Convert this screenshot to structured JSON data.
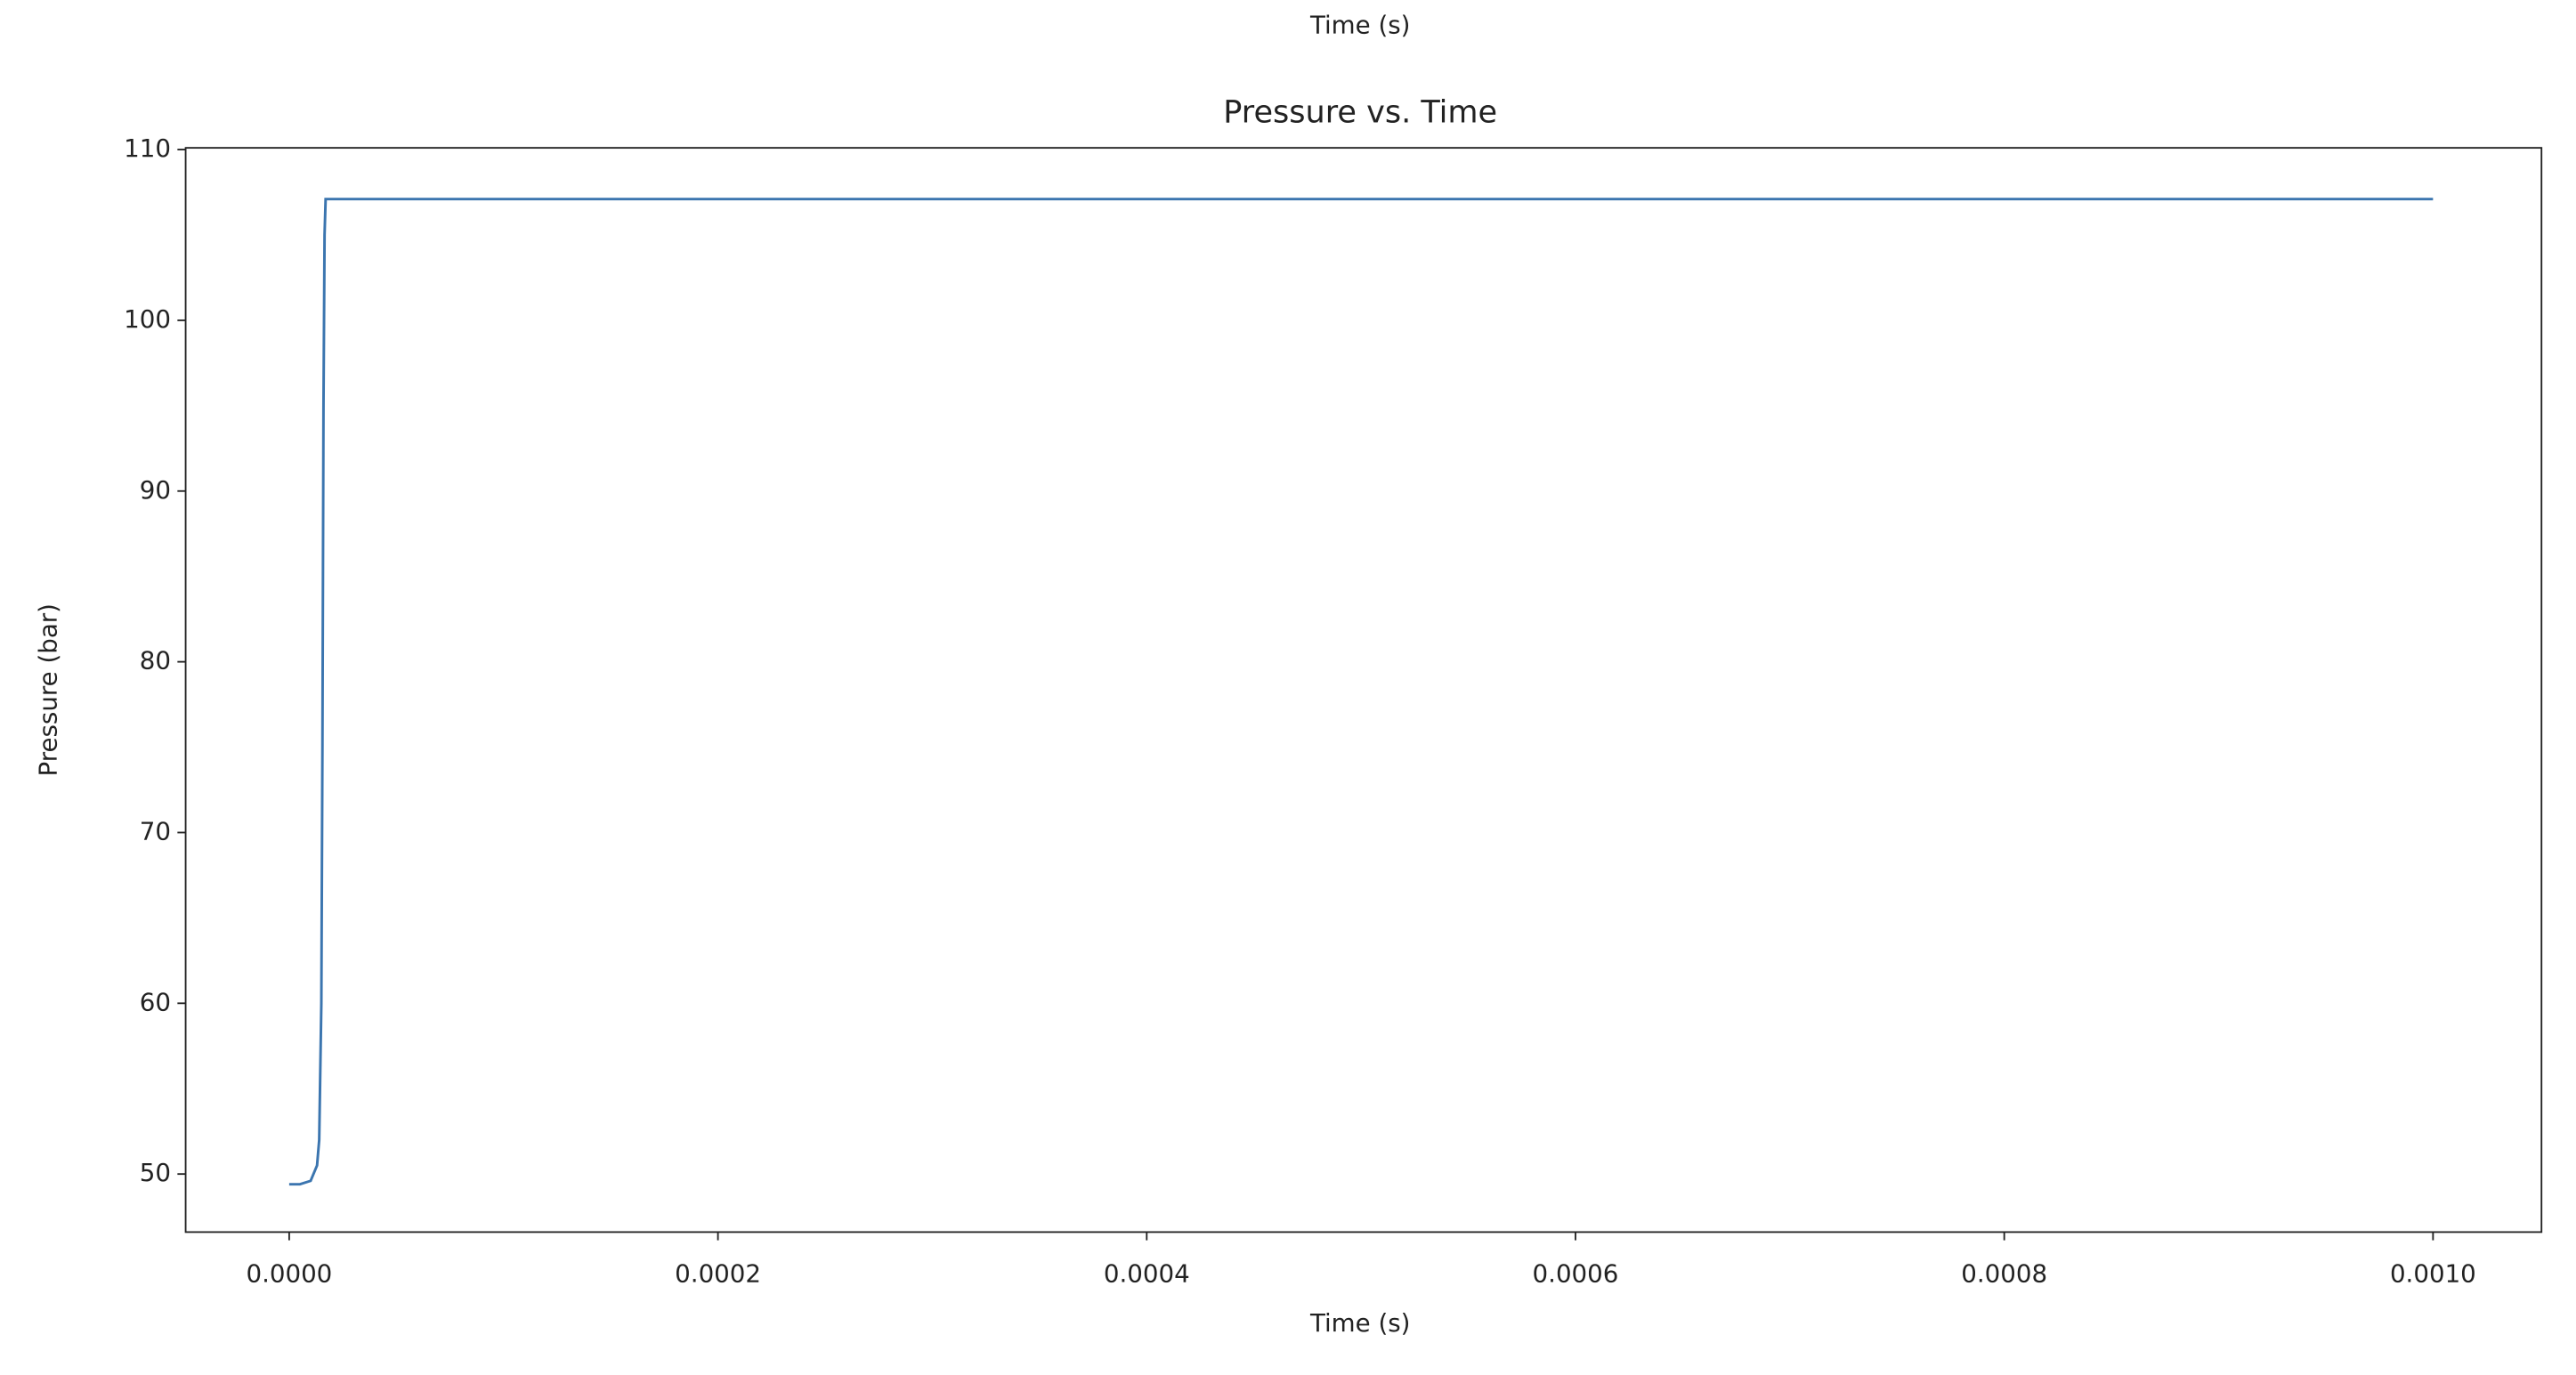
{
  "clipped_label": "Time (s)",
  "chart_data": {
    "type": "line",
    "title": "Pressure vs. Time",
    "xlabel": "Time (s)",
    "ylabel": "Pressure (bar)",
    "x": [
      0,
      5e-06,
      1e-05,
      1.3e-05,
      1.4e-05,
      1.5e-05,
      1.55e-05,
      1.6e-05,
      1.65e-05,
      1.7e-05,
      2e-05,
      0.001
    ],
    "series": [
      {
        "color": "#3b75af",
        "values": [
          49.4,
          49.4,
          49.6,
          50.5,
          52,
          60,
          75,
          95,
          105,
          107.1,
          107.1,
          107.1
        ]
      }
    ],
    "xlim": [
      -4.83e-05,
      0.0010506
    ],
    "ylim": [
      46.6,
      110.1
    ],
    "xticks": [
      {
        "value": 0,
        "label": "0.0000"
      },
      {
        "value": 0.0002,
        "label": "0.0002"
      },
      {
        "value": 0.0004,
        "label": "0.0004"
      },
      {
        "value": 0.0006,
        "label": "0.0006"
      },
      {
        "value": 0.0008,
        "label": "0.0008"
      },
      {
        "value": 0.001,
        "label": "0.0010"
      }
    ],
    "yticks": [
      50,
      60,
      70,
      80,
      90,
      100,
      110
    ],
    "grid": false
  }
}
